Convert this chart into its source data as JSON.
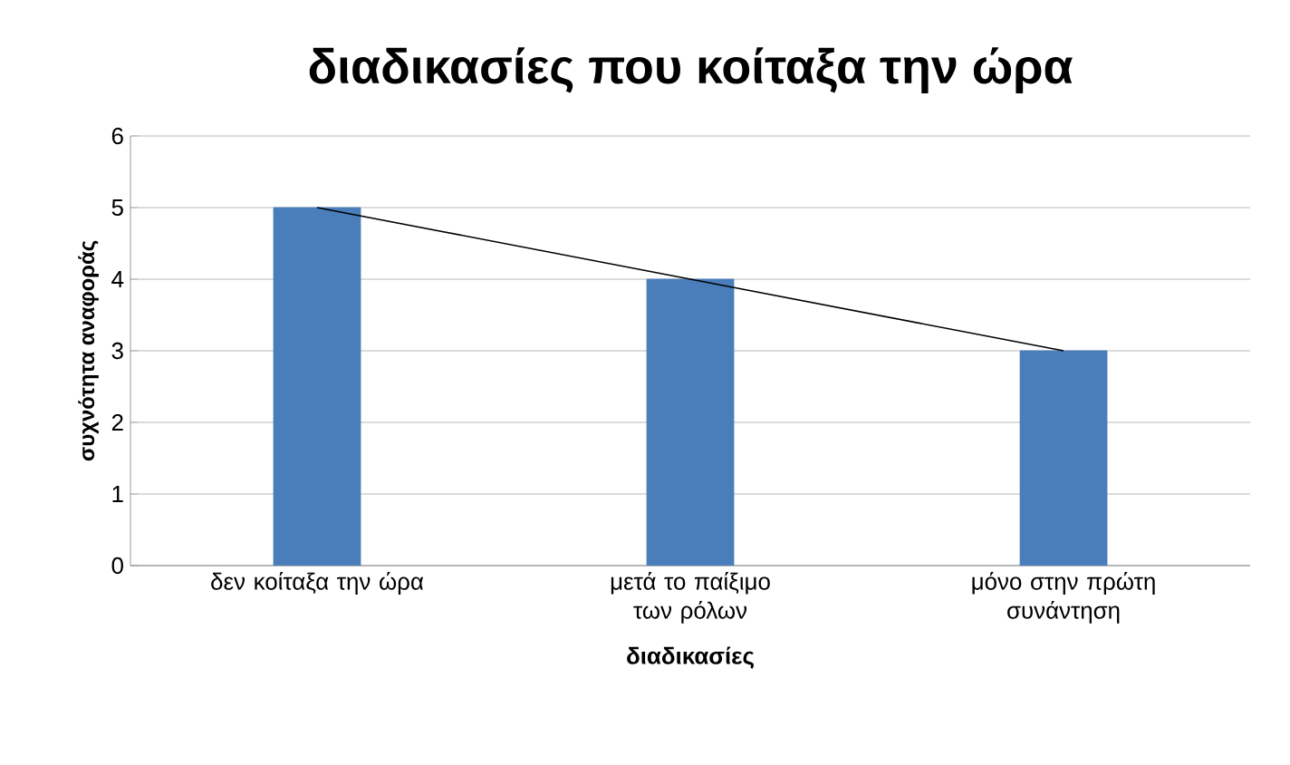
{
  "chart_data": {
    "type": "bar",
    "title": "διαδικασίες που κοίταξα την ώρα",
    "xlabel": "διαδικασίες",
    "ylabel": "συχνότητα αναφοράς",
    "categories": [
      "δεν κοίταξα την ώρα",
      "μετά το παίξιμο των ρόλων",
      "μόνο στην πρώτη συνάντηση"
    ],
    "series": [
      {
        "color": "#4a7ebb",
        "values": [
          5,
          4,
          3
        ]
      },
      {
        "type": "line",
        "color": "#000000",
        "values": [
          5,
          4,
          3
        ]
      }
    ],
    "ylim": [
      0,
      6
    ],
    "yticks": [
      0,
      1,
      2,
      3,
      4,
      5,
      6
    ],
    "grid": "y"
  }
}
